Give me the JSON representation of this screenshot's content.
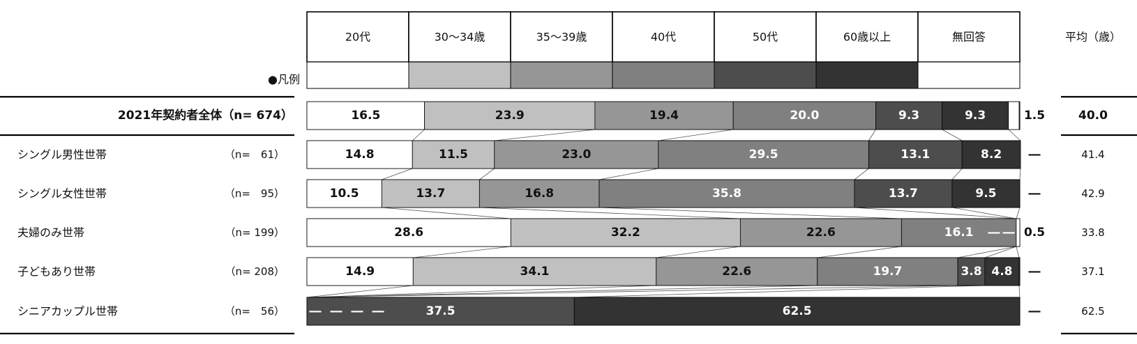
{
  "chart_data": {
    "type": "bar",
    "orientation": "horizontal",
    "stacked": "100%",
    "legend_title": "●凡例",
    "avg_header": "平均（歳）",
    "series": [
      {
        "name": "20代",
        "color": "#ffffff"
      },
      {
        "name": "30～34歳",
        "color": "#c0c0c0"
      },
      {
        "name": "35～39歳",
        "color": "#969696"
      },
      {
        "name": "40代",
        "color": "#808080"
      },
      {
        "name": "50代",
        "color": "#4d4d4d"
      },
      {
        "name": "60歳以上",
        "color": "#333333"
      },
      {
        "name": "無回答",
        "color": "#ffffff"
      }
    ],
    "rows": [
      {
        "label": "2021年契約者全体（n= 674）",
        "n": "",
        "bold": true,
        "values": [
          16.5,
          23.9,
          19.4,
          20.0,
          9.3,
          9.3,
          1.5
        ],
        "value_labels": [
          "16.5",
          "23.9",
          "19.4",
          "20.0",
          "9.3",
          "9.3",
          "1.5"
        ],
        "average": "40.0"
      },
      {
        "label": "シングル男性世帯",
        "n": "（n=　61）",
        "bold": false,
        "values": [
          14.8,
          11.5,
          23.0,
          29.5,
          13.1,
          8.2,
          0
        ],
        "value_labels": [
          "14.8",
          "11.5",
          "23.0",
          "29.5",
          "13.1",
          "8.2",
          "―"
        ],
        "average": "41.4"
      },
      {
        "label": "シングル女性世帯",
        "n": "（n=　95）",
        "bold": false,
        "values": [
          10.5,
          13.7,
          16.8,
          35.8,
          13.7,
          9.5,
          0
        ],
        "value_labels": [
          "10.5",
          "13.7",
          "16.8",
          "35.8",
          "13.7",
          "9.5",
          "―"
        ],
        "average": "42.9"
      },
      {
        "label": "夫婦のみ世帯",
        "n": "（n= 199）",
        "bold": false,
        "values": [
          28.6,
          32.2,
          22.6,
          16.1,
          0,
          0,
          0.5
        ],
        "value_labels": [
          "28.6",
          "32.2",
          "22.6",
          "16.1",
          "―",
          "―",
          "0.5"
        ],
        "average": "33.8"
      },
      {
        "label": "子どもあり世帯",
        "n": "（n= 208）",
        "bold": false,
        "values": [
          14.9,
          34.1,
          22.6,
          19.7,
          3.8,
          4.8,
          0
        ],
        "value_labels": [
          "14.9",
          "34.1",
          "22.6",
          "19.7",
          "3.8",
          "4.8",
          "―"
        ],
        "average": "37.1"
      },
      {
        "label": "シニアカップル世帯",
        "n": "（n=　56）",
        "bold": false,
        "values": [
          0,
          0,
          0,
          0,
          37.5,
          62.5,
          0
        ],
        "value_labels": [
          "―",
          "―",
          "―",
          "―",
          "37.5",
          "62.5",
          "―"
        ],
        "average": "62.5"
      }
    ]
  }
}
